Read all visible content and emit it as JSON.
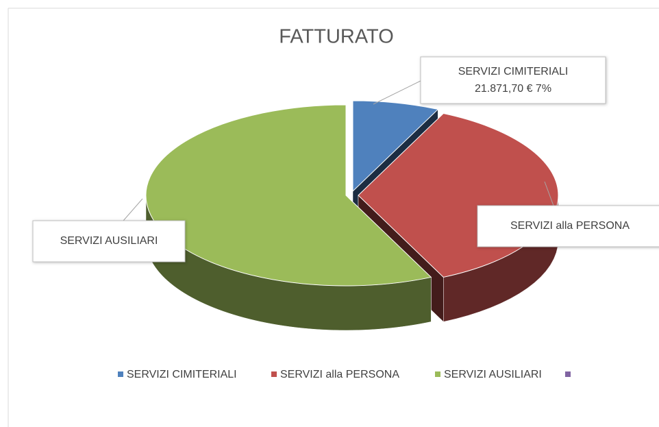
{
  "chart_data": {
    "type": "pie3d",
    "title": "FATTURATO",
    "categories": [
      "SERVIZI CIMITERIALI",
      "SERVIZI alla PERSONA",
      "SERVIZI AUSILIARI",
      null
    ],
    "values": [
      21871.7,
      112480,
      178100,
      null
    ],
    "value_labels": [
      "21.871,70 € 7%",
      null,
      null,
      null
    ],
    "colors": [
      "#4f81bd",
      "#c0504d",
      "#9bbb59",
      "#8064a2"
    ],
    "legend": "bottom"
  }
}
